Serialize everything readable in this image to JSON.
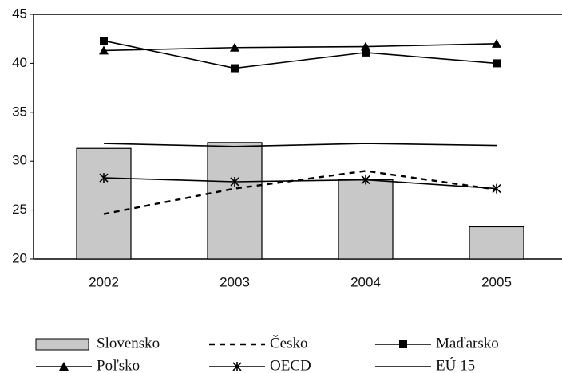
{
  "chart_data": {
    "type": "bar-line",
    "categories": [
      "2002",
      "2003",
      "2004",
      "2005"
    ],
    "ylim": [
      20,
      45
    ],
    "yticks": [
      20,
      25,
      30,
      35,
      40,
      45
    ],
    "grid": false,
    "legend": "bottom",
    "series": [
      {
        "name": "Slovensko",
        "type": "bar",
        "color": "#c8c8c8",
        "values": [
          31.3,
          31.9,
          28.1,
          23.3
        ]
      },
      {
        "name": "Česko",
        "type": "line",
        "dash": true,
        "color": "#000000",
        "values": [
          24.6,
          27.2,
          29.0,
          27.1
        ]
      },
      {
        "name": "Maďarsko",
        "type": "line",
        "marker": "square",
        "color": "#000000",
        "values": [
          42.3,
          39.5,
          41.1,
          40.0
        ]
      },
      {
        "name": "Poľsko",
        "type": "line",
        "marker": "triangle",
        "color": "#000000",
        "values": [
          41.3,
          41.6,
          41.7,
          42.0
        ]
      },
      {
        "name": "OECD",
        "type": "line",
        "marker": "star",
        "color": "#000000",
        "values": [
          28.3,
          27.9,
          28.1,
          27.2
        ]
      },
      {
        "name": "EÚ 15",
        "type": "line",
        "color": "#000000",
        "values": [
          31.8,
          31.5,
          31.8,
          31.6
        ]
      }
    ]
  }
}
